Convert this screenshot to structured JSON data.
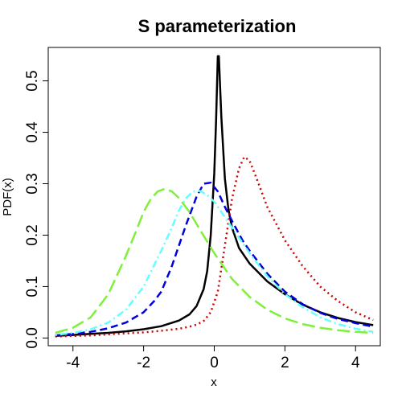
{
  "chart_data": {
    "type": "line",
    "title": "S parameterization",
    "xlabel": "x",
    "ylabel": "PDF(x)",
    "xlim": [
      -4.7,
      4.7
    ],
    "ylim": [
      -0.015,
      0.565
    ],
    "x_ticks": [
      -4,
      -2,
      0,
      2,
      4
    ],
    "x_tick_labels": [
      "-4",
      "-2",
      "0",
      "2",
      "4"
    ],
    "y_ticks": [
      0.0,
      0.1,
      0.2,
      0.3,
      0.4,
      0.5
    ],
    "y_tick_labels": [
      "0.0",
      "0.1",
      "0.2",
      "0.3",
      "0.4",
      "0.5"
    ],
    "grid": false,
    "series": [
      {
        "color": "#000000",
        "dash": "solid",
        "x": [
          -4.5,
          -4.0,
          -3.5,
          -3.0,
          -2.5,
          -2.0,
          -1.5,
          -1.0,
          -0.7,
          -0.5,
          -0.3,
          -0.2,
          -0.1,
          0.0,
          0.05,
          0.1,
          0.13,
          0.2,
          0.3,
          0.4,
          0.5,
          0.7,
          1.0,
          1.5,
          2.0,
          2.5,
          3.0,
          3.5,
          4.0,
          4.5
        ],
        "y": [
          0.004,
          0.006,
          0.008,
          0.01,
          0.013,
          0.017,
          0.023,
          0.034,
          0.046,
          0.062,
          0.095,
          0.13,
          0.2,
          0.32,
          0.42,
          0.548,
          0.548,
          0.43,
          0.31,
          0.25,
          0.215,
          0.175,
          0.145,
          0.11,
          0.085,
          0.065,
          0.05,
          0.039,
          0.031,
          0.025
        ]
      },
      {
        "color": "#cc0000",
        "dash": "dotted",
        "x": [
          -4.5,
          -4.0,
          -3.5,
          -3.0,
          -2.5,
          -2.0,
          -1.5,
          -1.0,
          -0.7,
          -0.5,
          -0.3,
          -0.1,
          0.1,
          0.3,
          0.5,
          0.7,
          0.85,
          1.0,
          1.2,
          1.5,
          2.0,
          2.5,
          3.0,
          3.5,
          4.0,
          4.5
        ],
        "y": [
          0.003,
          0.004,
          0.005,
          0.007,
          0.009,
          0.011,
          0.014,
          0.018,
          0.022,
          0.026,
          0.033,
          0.05,
          0.09,
          0.18,
          0.27,
          0.33,
          0.352,
          0.345,
          0.31,
          0.255,
          0.19,
          0.14,
          0.1,
          0.072,
          0.05,
          0.035
        ]
      },
      {
        "color": "#0000dd",
        "dash": "dashed",
        "x": [
          -4.5,
          -4.0,
          -3.5,
          -3.0,
          -2.5,
          -2.0,
          -1.7,
          -1.5,
          -1.2,
          -1.0,
          -0.8,
          -0.5,
          -0.3,
          -0.1,
          0.1,
          0.3,
          0.5,
          0.8,
          1.0,
          1.5,
          2.0,
          2.5,
          3.0,
          3.5,
          4.0,
          4.5
        ],
        "y": [
          0.005,
          0.008,
          0.012,
          0.019,
          0.03,
          0.05,
          0.072,
          0.09,
          0.14,
          0.18,
          0.22,
          0.275,
          0.3,
          0.302,
          0.285,
          0.255,
          0.228,
          0.19,
          0.17,
          0.125,
          0.09,
          0.066,
          0.049,
          0.037,
          0.029,
          0.022
        ]
      },
      {
        "color": "#66ffff",
        "dash": "dashdot",
        "x": [
          -4.5,
          -4.0,
          -3.5,
          -3.0,
          -2.5,
          -2.0,
          -1.5,
          -1.2,
          -1.0,
          -0.8,
          -0.6,
          -0.4,
          -0.2,
          0.0,
          0.3,
          0.6,
          1.0,
          1.5,
          2.0,
          2.5,
          3.0,
          3.5,
          4.0,
          4.5
        ],
        "y": [
          0.006,
          0.01,
          0.017,
          0.03,
          0.055,
          0.1,
          0.17,
          0.215,
          0.248,
          0.272,
          0.285,
          0.286,
          0.278,
          0.265,
          0.235,
          0.205,
          0.165,
          0.12,
          0.085,
          0.06,
          0.04,
          0.027,
          0.018,
          0.012
        ]
      },
      {
        "color": "#7ff03a",
        "dash": "longdash",
        "x": [
          -4.5,
          -4.0,
          -3.5,
          -3.0,
          -2.5,
          -2.2,
          -2.0,
          -1.8,
          -1.6,
          -1.4,
          -1.2,
          -1.0,
          -0.7,
          -0.4,
          0.0,
          0.5,
          1.0,
          1.5,
          2.0,
          2.5,
          3.0,
          3.5,
          4.0,
          4.5
        ],
        "y": [
          0.01,
          0.02,
          0.04,
          0.085,
          0.16,
          0.21,
          0.245,
          0.27,
          0.285,
          0.29,
          0.285,
          0.272,
          0.245,
          0.21,
          0.165,
          0.115,
          0.08,
          0.055,
          0.038,
          0.027,
          0.02,
          0.015,
          0.012,
          0.01
        ]
      }
    ]
  }
}
